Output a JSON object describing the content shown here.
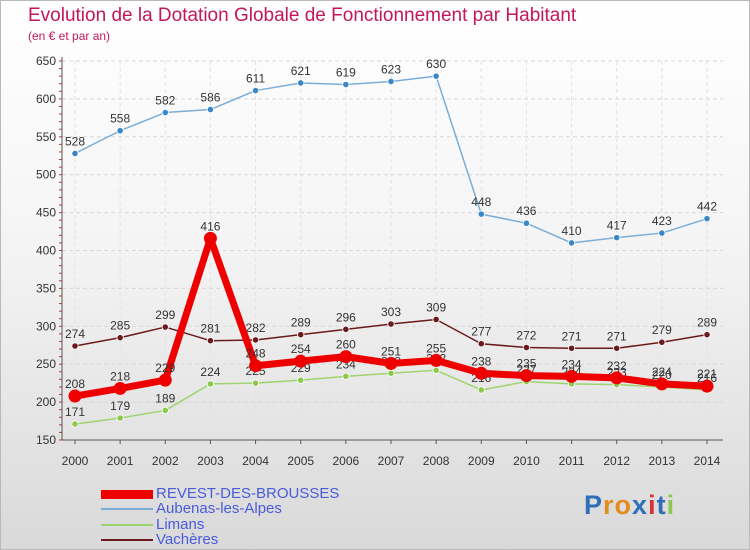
{
  "title": "Evolution de la Dotation Globale de Fonctionnement par Habitant",
  "subtitle": "(en € et par an)",
  "logo": "Proxiti",
  "chart_data": {
    "type": "line",
    "title": "Evolution de la Dotation Globale de Fonctionnement par Habitant",
    "subtitle": "(en € et par an)",
    "xlabel": "",
    "ylabel": "",
    "ylim": [
      150,
      650
    ],
    "yticks": [
      150,
      200,
      250,
      300,
      350,
      400,
      450,
      500,
      550,
      600,
      650
    ],
    "grid": true,
    "legend_position": "bottom-left",
    "categories": [
      "2000",
      "2001",
      "2002",
      "2003",
      "2004",
      "2005",
      "2006",
      "2007",
      "2008",
      "2009",
      "2010",
      "2011",
      "2012",
      "2013",
      "2014"
    ],
    "series": [
      {
        "name": "Vachères",
        "color": "#6b1b1b",
        "marker_color": "#6b1b1b",
        "values": [
          274,
          285,
          299,
          281,
          282,
          289,
          296,
          303,
          309,
          277,
          272,
          271,
          271,
          279,
          289
        ]
      },
      {
        "name": "Limans",
        "color": "#9ed46e",
        "marker_color": "#8cc850",
        "values": [
          171,
          179,
          189,
          224,
          225,
          229,
          234,
          238,
          242,
          216,
          227,
          224,
          223,
          220,
          216
        ]
      },
      {
        "name": "Aubenas-les-Alpes",
        "color": "#7aaed9",
        "marker_color": "#3a87c8",
        "values": [
          528,
          558,
          582,
          586,
          611,
          621,
          619,
          623,
          630,
          448,
          436,
          410,
          417,
          423,
          442
        ]
      },
      {
        "name": "REVEST-DES-BROUSSES",
        "color": "#ee0000",
        "marker_color": "#ee0000",
        "values": [
          208,
          218,
          229,
          416,
          248,
          254,
          260,
          251,
          255,
          238,
          235,
          234,
          232,
          224,
          221
        ]
      }
    ],
    "legend_order": [
      "REVEST-DES-BROUSSES",
      "Aubenas-les-Alpes",
      "Limans",
      "Vachères"
    ]
  }
}
